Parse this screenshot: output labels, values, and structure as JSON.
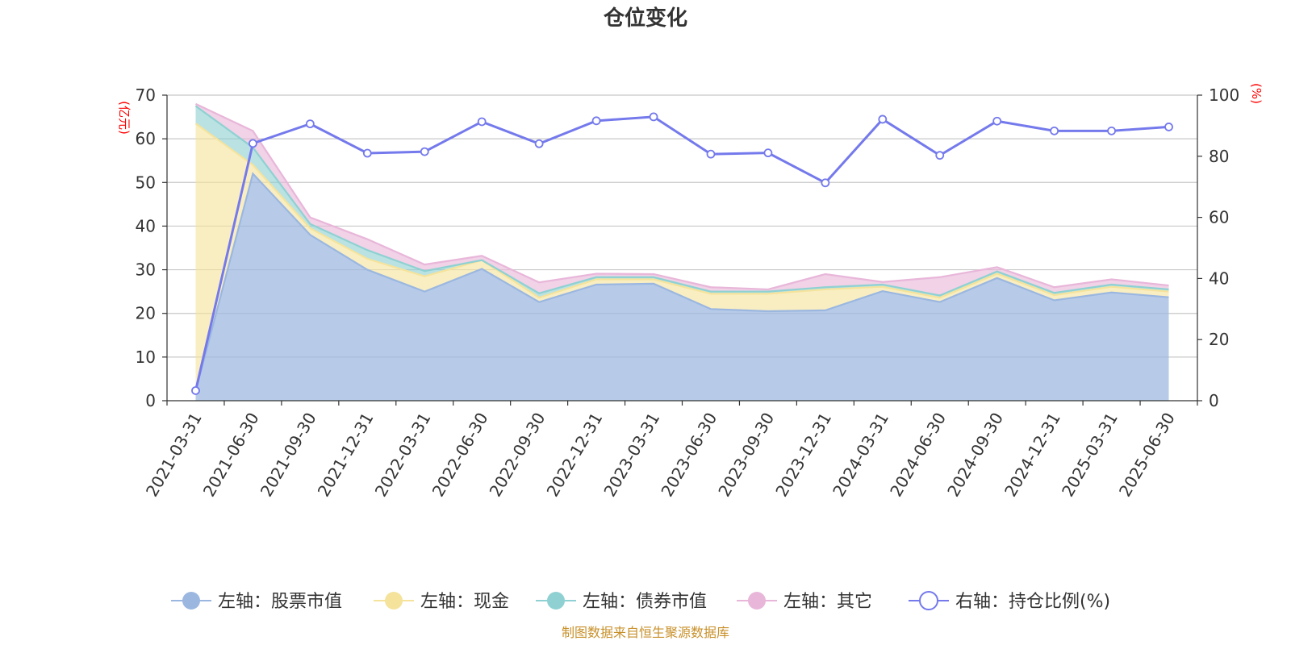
{
  "chart_data": {
    "type": "area",
    "title": "仓位变化",
    "left_unit": "(亿元)",
    "right_unit": "(%)",
    "categories": [
      "2021-03-31",
      "2021-06-30",
      "2021-09-30",
      "2021-12-31",
      "2022-03-31",
      "2022-06-30",
      "2022-09-30",
      "2022-12-31",
      "2023-03-31",
      "2023-06-30",
      "2023-09-30",
      "2023-12-31",
      "2024-03-31",
      "2024-06-30",
      "2024-09-30",
      "2024-12-31",
      "2025-03-31",
      "2025-06-30"
    ],
    "left_ylim": [
      0,
      70
    ],
    "left_ticks": [
      0,
      10,
      20,
      30,
      40,
      50,
      60,
      70
    ],
    "right_ylim": [
      0,
      100
    ],
    "right_ticks": [
      0,
      20,
      40,
      60,
      80,
      100
    ],
    "grid": true,
    "legend_position": "bottom",
    "series": [
      {
        "name": "左轴：股票市值",
        "axis": "left",
        "stack": true,
        "color": "#9bb7e0",
        "values": [
          2.2,
          52.0,
          38.0,
          30.0,
          25.0,
          30.2,
          22.6,
          26.6,
          26.8,
          21.0,
          20.5,
          20.7,
          25.1,
          22.6,
          28.1,
          23.0,
          24.8,
          23.7
        ]
      },
      {
        "name": "左轴：现金",
        "axis": "left",
        "stack": true,
        "color": "#f5e39c",
        "values": [
          61.3,
          2.0,
          1.5,
          2.5,
          3.5,
          2.0,
          1.0,
          1.2,
          1.0,
          3.5,
          4.0,
          4.8,
          1.0,
          1.0,
          1.0,
          1.2,
          1.3,
          1.3
        ]
      },
      {
        "name": "左轴：债券市值",
        "axis": "left",
        "stack": true,
        "color": "#8fd1d2",
        "values": [
          4.0,
          4.0,
          1.0,
          2.0,
          1.2,
          0.0,
          1.0,
          0.5,
          0.5,
          0.5,
          0.5,
          0.5,
          0.5,
          0.5,
          0.5,
          0.5,
          0.5,
          0.5
        ]
      },
      {
        "name": "左轴：其它",
        "axis": "left",
        "stack": true,
        "color": "#e8b6d9",
        "values": [
          0.5,
          3.8,
          1.5,
          2.5,
          1.5,
          1.0,
          2.5,
          0.8,
          0.7,
          1.0,
          0.5,
          3.0,
          0.6,
          4.2,
          1.0,
          1.3,
          1.2,
          0.9
        ]
      },
      {
        "name": "右轴：持仓比例(%)",
        "axis": "right",
        "stack": false,
        "color": "#7479ec",
        "values": [
          3.3,
          84.2,
          90.6,
          81.0,
          81.5,
          91.3,
          84.1,
          91.6,
          92.9,
          80.7,
          81.1,
          71.3,
          92.1,
          80.3,
          91.5,
          88.3,
          88.3,
          89.6
        ]
      }
    ]
  },
  "footer": {
    "source": "制图数据来自恒生聚源数据库"
  }
}
